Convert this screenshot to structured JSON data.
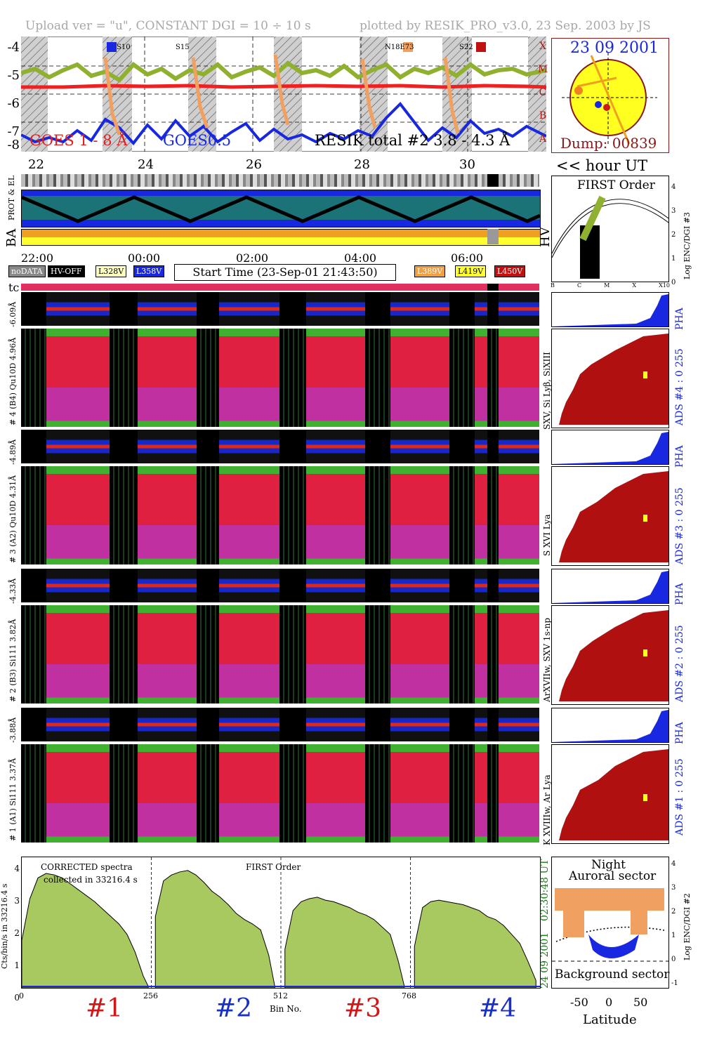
{
  "header": {
    "left": "Upload ver = \"u\", CONSTANT  DGI =  10 ÷  10 s",
    "right": "plotted by RESIK_PRO_v3.0, 23 Sep. 2003 by JS"
  },
  "top_panel": {
    "y_ticks": [
      "-4",
      "-5",
      "-6",
      "-7",
      "-8"
    ],
    "class_letters": [
      "X",
      "M",
      "C",
      "B",
      "A"
    ],
    "goes1": "GOES 1 - 8 Å",
    "goes2": "GOES0.5",
    "resik": "RESIK total #2  3.8 - 4.3 Å",
    "marks": [
      "S10",
      "S15",
      "N18E73",
      "S22"
    ],
    "x_days": [
      "22",
      "24",
      "26",
      "28",
      "30"
    ],
    "hour_ut": "<< hour UT"
  },
  "sun": {
    "date": "23 09 2001",
    "dump": "Dump: 00839"
  },
  "strip_labels": {
    "prot": "PROT & EL",
    "ba": "BA",
    "hv": "HV"
  },
  "time_axis": [
    "22:00",
    "00:00",
    "02:00",
    "04:00",
    "06:00"
  ],
  "legend": {
    "nodata": "noDATA",
    "hvoff": "HV-OFF",
    "l328": "L328V",
    "l358": "L358V",
    "start": "Start Time (23-Sep-01 21:43:50)",
    "l389": "L389V",
    "l419": "L419V",
    "l450": "L450V",
    "tc": "tc"
  },
  "first_order_panel": {
    "title": "FIRST Order",
    "ylabel": "Log ENC/DGI #3",
    "y_ticks": [
      "4",
      "3",
      "2",
      "1",
      "0"
    ],
    "x_ticks": [
      "B",
      "C",
      "M",
      "X",
      "X10"
    ]
  },
  "channels": [
    {
      "pha": "-6.09Å",
      "label": "# 4 (B4) Qu10D  4.96Å",
      "ads": "ADS #4 :   0 255",
      "pha_label": "PHA",
      "ions": "SXV, Si Lyβ, SiXIII"
    },
    {
      "pha": "-4.89Å",
      "label": "# 3 (A2) Qu10D  4.31Å",
      "ads": "ADS #3 :   0 255",
      "pha_label": "PHA",
      "ions": "S XVI Lya"
    },
    {
      "pha": "-4.33Å",
      "label": "# 2 (B3) Si111  3.82Å",
      "ads": "ADS #2 :   0 255",
      "pha_label": "PHA",
      "ions": "ArXVIIw, SXV 1s-np"
    },
    {
      "pha": "-3.88Å",
      "label": "# 1 (A1) Si111  3.37Å",
      "ads": "ADS #1 :   0 255",
      "pha_label": "PHA",
      "ions": "K XVIIIw, Ar Lya"
    }
  ],
  "spectrum": {
    "title1": "CORRECTED spectra",
    "title2": "collected in 33216.4 s",
    "title3": "FIRST Order",
    "ylabel": "Cts/bin/s in 33216.4 s",
    "y_ticks": [
      "4",
      "3",
      "2",
      "1",
      "0"
    ],
    "x_ticks": [
      "0",
      "256",
      "512",
      "768"
    ],
    "xlabel": "Bin No.",
    "detectors": [
      "#1",
      "#2",
      "#3",
      "#4"
    ],
    "det_colors": [
      "#d01818",
      "#1830c8",
      "#d01818",
      "#1830c8"
    ],
    "end_time": "02:30:48 UT",
    "end_date": "24 09 2001"
  },
  "latitude_panel": {
    "night": "Night",
    "auroral": "Auroral sector",
    "background": "Background sector",
    "xlabel": "Latitude",
    "x_ticks": [
      "-50",
      "0",
      "50"
    ],
    "ylabel": "Log ENC/DGI #2",
    "y_ticks": [
      "4",
      "3",
      "2",
      "1",
      "0",
      "-1"
    ]
  },
  "chart_data": {
    "type": "bar",
    "title": "CORRECTED spectra",
    "xlabel": "Bin No.",
    "ylabel": "Cts/bin/s in 33216.4 s",
    "xlim": [
      0,
      1024
    ],
    "ylim": [
      0,
      4.3
    ],
    "series": [
      {
        "name": "#1",
        "bins": [
          0,
          16,
          32,
          48,
          64,
          80,
          96,
          112,
          128,
          144,
          160,
          176,
          192,
          208,
          224,
          240,
          250
        ],
        "values": [
          1.6,
          3.0,
          3.7,
          3.85,
          3.8,
          3.7,
          3.5,
          3.3,
          3.1,
          2.9,
          2.65,
          2.4,
          2.15,
          1.8,
          1.2,
          0.4,
          0.05
        ]
      },
      {
        "name": "#2",
        "bins": [
          264,
          280,
          296,
          312,
          328,
          344,
          360,
          376,
          392,
          408,
          424,
          440,
          456,
          472,
          488,
          500
        ],
        "values": [
          2.4,
          3.6,
          3.8,
          3.9,
          3.95,
          3.8,
          3.55,
          3.25,
          3.05,
          2.8,
          2.5,
          2.3,
          2.15,
          1.95,
          1.1,
          0.05
        ]
      },
      {
        "name": "#3",
        "bins": [
          520,
          536,
          552,
          568,
          584,
          600,
          616,
          632,
          648,
          664,
          680,
          696,
          712,
          728,
          744,
          756
        ],
        "values": [
          1.3,
          2.6,
          2.9,
          3.0,
          3.05,
          2.95,
          2.9,
          2.8,
          2.7,
          2.55,
          2.45,
          2.3,
          2.05,
          1.8,
          0.9,
          0.05
        ]
      },
      {
        "name": "#4",
        "bins": [
          776,
          792,
          808,
          824,
          840,
          856,
          872,
          888,
          904,
          920,
          936,
          952,
          968,
          984,
          1000,
          1016
        ],
        "values": [
          1.4,
          2.7,
          2.9,
          2.95,
          2.9,
          2.85,
          2.8,
          2.7,
          2.6,
          2.4,
          2.3,
          2.1,
          1.8,
          1.5,
          0.9,
          0.25
        ]
      }
    ]
  }
}
